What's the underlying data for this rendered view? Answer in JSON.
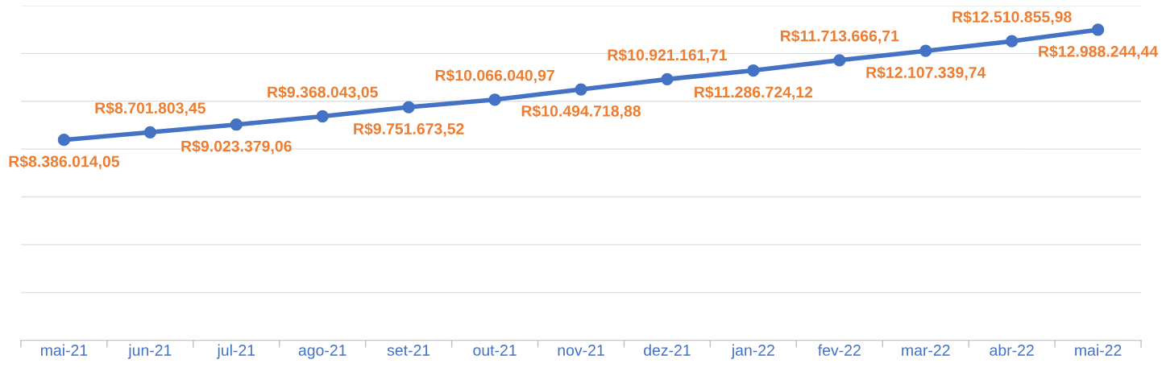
{
  "chart_data": {
    "type": "line",
    "categories": [
      "mai-21",
      "jun-21",
      "jul-21",
      "ago-21",
      "set-21",
      "out-21",
      "nov-21",
      "dez-21",
      "jan-22",
      "fev-22",
      "mar-22",
      "abr-22",
      "mai-22"
    ],
    "series": [
      {
        "color": "#4472c4",
        "values": [
          8386014.05,
          8701803.45,
          9023379.06,
          9368043.05,
          9751673.52,
          10066040.97,
          10494718.88,
          10921161.71,
          11286724.12,
          11713666.71,
          12107339.74,
          12510855.98,
          12988244.44
        ],
        "value_labels": [
          "R$8.386.014,05",
          "R$8.701.803,45",
          "R$9.023.379,06",
          "R$9.368.043,05",
          "R$9.751.673,52",
          "R$10.066.040,97",
          "R$10.494.718,88",
          "R$10.921.161,71",
          "R$11.286.724,12",
          "R$11.713.666,71",
          "R$12.107.339,74",
          "R$12.510.855,98",
          "R$12.988.244,44"
        ]
      }
    ],
    "ylim": [
      0,
      14000000
    ],
    "yticks": [
      {
        "value": 0,
        "label": null
      },
      {
        "value": 2000000,
        "label": null
      },
      {
        "value": 4000000,
        "label": null
      },
      {
        "value": 6000000,
        "label": null
      },
      {
        "value": 8000000,
        "label": null
      },
      {
        "value": 10000000,
        "label": null
      },
      {
        "value": 12000000,
        "label": null
      },
      {
        "value": 14000000,
        "label": null
      }
    ],
    "tick_labels": "x",
    "grid": "y",
    "marker": "circle",
    "line_style": "solid",
    "legend": false
  }
}
